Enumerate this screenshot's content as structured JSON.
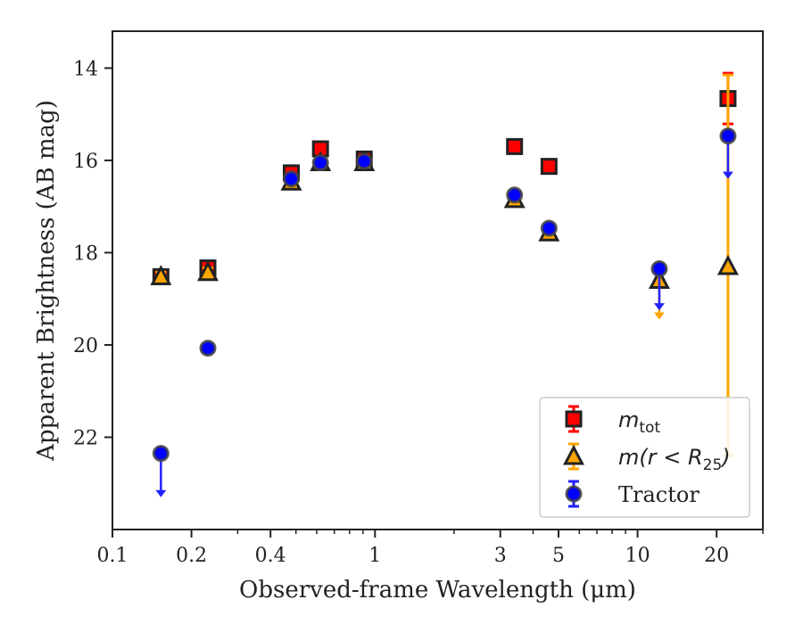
{
  "chart_data": {
    "type": "scatter",
    "xlabel": "Observed-frame Wavelength (μm)",
    "ylabel": "Apparent Brightness (AB mag)",
    "xscale": "log",
    "xlim": [
      0.1,
      30
    ],
    "ylim": [
      24,
      13.2
    ],
    "y_inverted": true,
    "x_ticks": [
      0.1,
      0.2,
      0.4,
      1,
      3,
      5,
      10,
      20
    ],
    "x_tick_labels": [
      "0.1",
      "0.2",
      "0.4",
      "1",
      "3",
      "5",
      "10",
      "20"
    ],
    "y_ticks": [
      14,
      16,
      18,
      20,
      22
    ],
    "y_tick_labels": [
      "14",
      "16",
      "18",
      "20",
      "22"
    ],
    "grid": false,
    "legend_position": "bottom-right",
    "series": [
      {
        "name": "m_tot",
        "legend_main": "m",
        "legend_sub": "tot",
        "marker": "square",
        "color": "#ff0000",
        "edge": "#222222",
        "errcolor": "#ff0000",
        "points": [
          {
            "x": 0.153,
            "y": 18.52,
            "err": 0.1
          },
          {
            "x": 0.231,
            "y": 18.33,
            "err": 0.1
          },
          {
            "x": 0.48,
            "y": 16.27,
            "err": 0.1
          },
          {
            "x": 0.62,
            "y": 15.75,
            "err": 0.1
          },
          {
            "x": 0.91,
            "y": 15.97,
            "err": 0.1
          },
          {
            "x": 3.4,
            "y": 15.7,
            "err": 0.05
          },
          {
            "x": 4.6,
            "y": 16.13,
            "err": 0.05
          },
          {
            "x": 22.1,
            "y": 14.66,
            "err": 0.55
          }
        ]
      },
      {
        "name": "m(r<R_25)",
        "legend_main": "m(r < R",
        "legend_sub": "25",
        "legend_tail": ")",
        "marker": "triangle",
        "color": "#ffa500",
        "edge": "#222222",
        "errcolor": "#ffa500",
        "points": [
          {
            "x": 0.153,
            "y": 18.52,
            "err": 0.1
          },
          {
            "x": 0.231,
            "y": 18.43,
            "err": 0.1
          },
          {
            "x": 0.48,
            "y": 16.47,
            "err": 0.05
          },
          {
            "x": 0.62,
            "y": 16.05,
            "err": 0.05
          },
          {
            "x": 0.91,
            "y": 16.05,
            "err": 0.05
          },
          {
            "x": 3.4,
            "y": 16.85,
            "err": 0.05
          },
          {
            "x": 4.6,
            "y": 17.57,
            "err": 0.05
          },
          {
            "x": 12.1,
            "y": 18.6,
            "err": 0,
            "upper_limit_to": 19.45
          },
          {
            "x": 22.1,
            "y": 18.3,
            "err": 4.0,
            "err_lo": 4.1,
            "err_hi": 4.15
          }
        ]
      },
      {
        "name": "Tractor",
        "legend_main": "Tractor",
        "marker": "circle",
        "color": "#0000ff",
        "edge": "#444444",
        "errcolor": "#2222ff",
        "points": [
          {
            "x": 0.153,
            "y": 22.35,
            "err": 0,
            "upper_limit_to": 23.3
          },
          {
            "x": 0.231,
            "y": 20.07,
            "err": 0.05
          },
          {
            "x": 0.48,
            "y": 16.4,
            "err": 0.05
          },
          {
            "x": 0.62,
            "y": 16.05,
            "err": 0.05
          },
          {
            "x": 0.91,
            "y": 16.02,
            "err": 0.05
          },
          {
            "x": 3.4,
            "y": 16.75,
            "err": 0.05
          },
          {
            "x": 4.6,
            "y": 17.47,
            "err": 0.05
          },
          {
            "x": 12.1,
            "y": 18.35,
            "err": 0,
            "upper_limit_to": 19.25
          },
          {
            "x": 22.1,
            "y": 15.47,
            "err": 0,
            "upper_limit_to": 16.4
          }
        ]
      }
    ]
  }
}
